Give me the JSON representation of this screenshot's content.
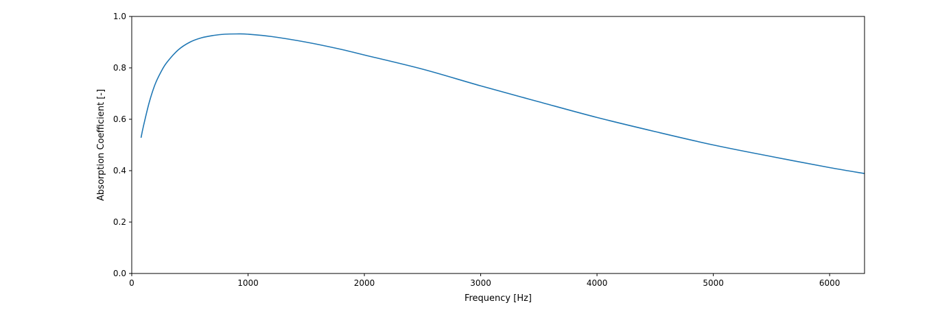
{
  "chart_data": {
    "type": "line",
    "title": "",
    "xlabel": "Frequency [Hz]",
    "ylabel": "Absorption Coefficient [-]",
    "xlim": [
      0,
      6300
    ],
    "ylim": [
      0,
      1.0
    ],
    "xticks": [
      0,
      1000,
      2000,
      3000,
      4000,
      5000,
      6000
    ],
    "xtick_labels": [
      "0",
      "1000",
      "2000",
      "3000",
      "4000",
      "5000",
      "6000"
    ],
    "yticks": [
      0.0,
      0.2,
      0.4,
      0.6,
      0.8,
      1.0
    ],
    "ytick_labels": [
      "0.0",
      "0.2",
      "0.4",
      "0.6",
      "0.8",
      "1.0"
    ],
    "grid": false,
    "legend": "none",
    "series": [
      {
        "color": "#1f77b4",
        "x": [
          80,
          100,
          150,
          200,
          250,
          300,
          400,
          500,
          600,
          700,
          800,
          900,
          1000,
          1200,
          1500,
          1800,
          2000,
          2500,
          3000,
          3500,
          4000,
          4500,
          5000,
          5500,
          6000,
          6300
        ],
        "y": [
          0.528,
          0.572,
          0.665,
          0.735,
          0.783,
          0.82,
          0.87,
          0.9,
          0.917,
          0.926,
          0.931,
          0.932,
          0.931,
          0.922,
          0.9,
          0.872,
          0.85,
          0.795,
          0.73,
          0.668,
          0.607,
          0.552,
          0.5,
          0.455,
          0.412,
          0.389
        ]
      }
    ]
  }
}
